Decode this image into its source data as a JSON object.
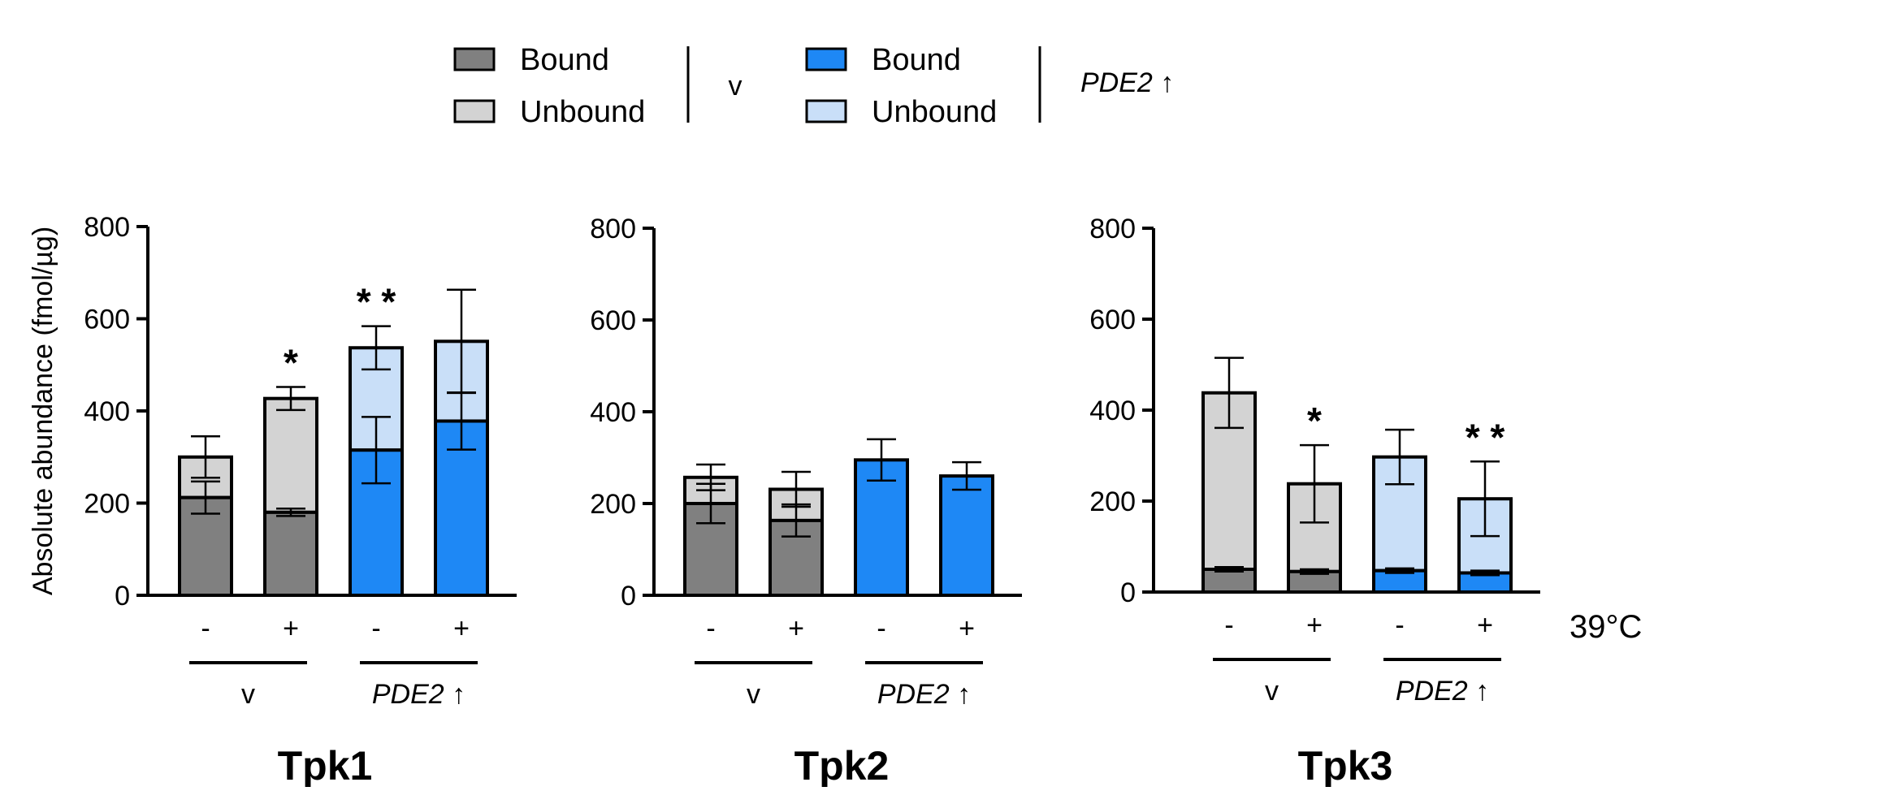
{
  "legend": {
    "group_v": {
      "label": "v",
      "entries": [
        {
          "name": "Bound",
          "color": "#808080"
        },
        {
          "name": "Unbound",
          "color": "#D3D3D3"
        }
      ]
    },
    "group_pde2": {
      "label": "PDE2 ↑",
      "entries": [
        {
          "name": "Bound",
          "color": "#1E88F5"
        },
        {
          "name": "Unbound",
          "color": "#C9DFF8"
        }
      ]
    }
  },
  "chart_data": [
    {
      "type": "bar",
      "stacked": true,
      "title": "Tpk1",
      "ylabel": "Absolute abundance (fmol/µg)",
      "ylim": [
        0,
        800
      ],
      "yticks": [
        0,
        200,
        400,
        600,
        800
      ],
      "categories": [
        "-",
        "+",
        "-",
        "+"
      ],
      "groups": [
        {
          "label": "v",
          "categories": [
            0,
            1
          ]
        },
        {
          "label": "PDE2 ↑",
          "categories": [
            2,
            3
          ]
        }
      ],
      "series": [
        {
          "name": "Bound",
          "values": [
            212,
            180,
            315,
            378
          ],
          "errors": [
            35,
            8,
            72,
            62
          ]
        },
        {
          "name": "Unbound",
          "values": [
            88,
            247,
            222,
            173
          ],
          "errors": [
            45,
            25,
            47,
            112
          ]
        }
      ],
      "annotations": [
        "",
        "*",
        "**",
        ""
      ],
      "condition_label": ""
    },
    {
      "type": "bar",
      "stacked": true,
      "title": "Tpk2",
      "ylabel": "",
      "ylim": [
        0,
        800
      ],
      "yticks": [
        0,
        200,
        400,
        600,
        800
      ],
      "categories": [
        "-",
        "+",
        "-",
        "+"
      ],
      "groups": [
        {
          "label": "v",
          "categories": [
            0,
            1
          ]
        },
        {
          "label": "PDE2 ↑",
          "categories": [
            2,
            3
          ]
        }
      ],
      "series": [
        {
          "name": "Bound",
          "values": [
            200,
            163,
            295,
            260
          ],
          "errors": [
            43,
            35,
            0,
            0
          ]
        },
        {
          "name": "Unbound",
          "values": [
            57,
            68,
            0,
            0
          ],
          "errors": [
            28,
            38,
            45,
            30
          ]
        }
      ],
      "annotations": [
        "",
        "",
        "",
        ""
      ],
      "condition_label": ""
    },
    {
      "type": "bar",
      "stacked": true,
      "title": "Tpk3",
      "ylabel": "",
      "ylim": [
        0,
        800
      ],
      "yticks": [
        0,
        200,
        400,
        600,
        800
      ],
      "categories": [
        "-",
        "+",
        "-",
        "+"
      ],
      "groups": [
        {
          "label": "v",
          "categories": [
            0,
            1
          ]
        },
        {
          "label": "PDE2 ↑",
          "categories": [
            2,
            3
          ]
        }
      ],
      "series": [
        {
          "name": "Bound",
          "values": [
            50,
            45,
            47,
            42
          ],
          "errors": [
            5,
            5,
            5,
            5
          ]
        },
        {
          "name": "Unbound",
          "values": [
            388,
            193,
            250,
            163
          ],
          "errors": [
            77,
            85,
            60,
            82
          ]
        }
      ],
      "annotations": [
        "",
        "*",
        "",
        "**"
      ],
      "condition_label": "39°C"
    }
  ]
}
